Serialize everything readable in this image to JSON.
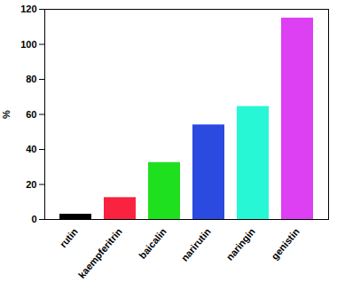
{
  "chart_data": {
    "type": "bar",
    "categories": [
      "rutin",
      "kaempferitrin",
      "baicalin",
      "narirutin",
      "naringin",
      "genistin"
    ],
    "values": [
      3,
      12.5,
      32.5,
      54,
      64.5,
      115
    ],
    "colors": [
      "#000000",
      "#f9223f",
      "#1fe01f",
      "#2a4ae0",
      "#27f7d5",
      "#dd3ff2"
    ],
    "y_label": "%",
    "ylim": [
      0,
      120
    ],
    "yticks": [
      0,
      20,
      40,
      60,
      80,
      100,
      120
    ],
    "grid": false
  }
}
